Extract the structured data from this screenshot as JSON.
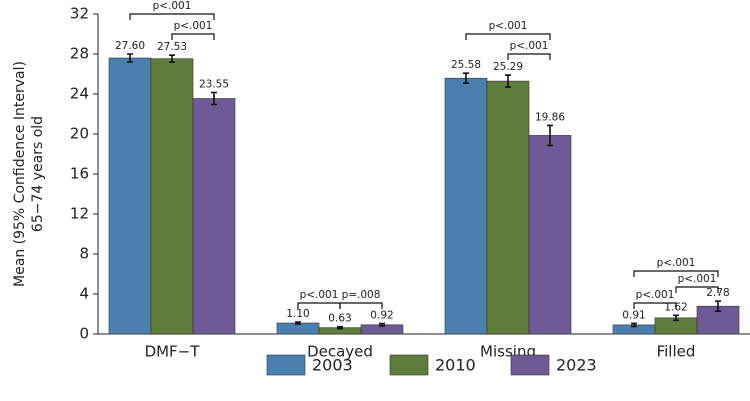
{
  "chart_data": {
    "type": "bar",
    "y_label": [
      "Mean (95% Confidence Interval)",
      "65−74 years old"
    ],
    "categories": [
      "DMF−T",
      "Decayed",
      "Missing",
      "Filled"
    ],
    "series": [
      {
        "name": "2003",
        "color": "#4a7fb0",
        "values": [
          27.6,
          1.1,
          25.58,
          0.91
        ],
        "value_labels": [
          "27.60",
          "1.10",
          "25.58",
          "0.91"
        ],
        "errors": [
          0.4,
          0.1,
          0.5,
          0.15
        ]
      },
      {
        "name": "2010",
        "color": "#5f7d3c",
        "values": [
          27.53,
          0.63,
          25.29,
          1.62
        ],
        "value_labels": [
          "27.53",
          "0.63",
          "25.29",
          "1.62"
        ],
        "errors": [
          0.35,
          0.1,
          0.6,
          0.25
        ]
      },
      {
        "name": "2023",
        "color": "#6e5a94",
        "values": [
          23.55,
          0.92,
          19.86,
          2.78
        ],
        "value_labels": [
          "23.55",
          "0.92",
          "19.86",
          "2.78"
        ],
        "errors": [
          0.6,
          0.12,
          1.0,
          0.5
        ]
      }
    ],
    "annotations": [
      "p<.001",
      "p<.001",
      "p<.001",
      "p=.008",
      "p<.001",
      "p<.001",
      "p<.001",
      "p<.001",
      "p<.001"
    ],
    "ylim": [
      0,
      32
    ],
    "yticks": [
      0,
      4,
      8,
      12,
      16,
      20,
      24,
      28,
      32
    ],
    "grid": false
  }
}
